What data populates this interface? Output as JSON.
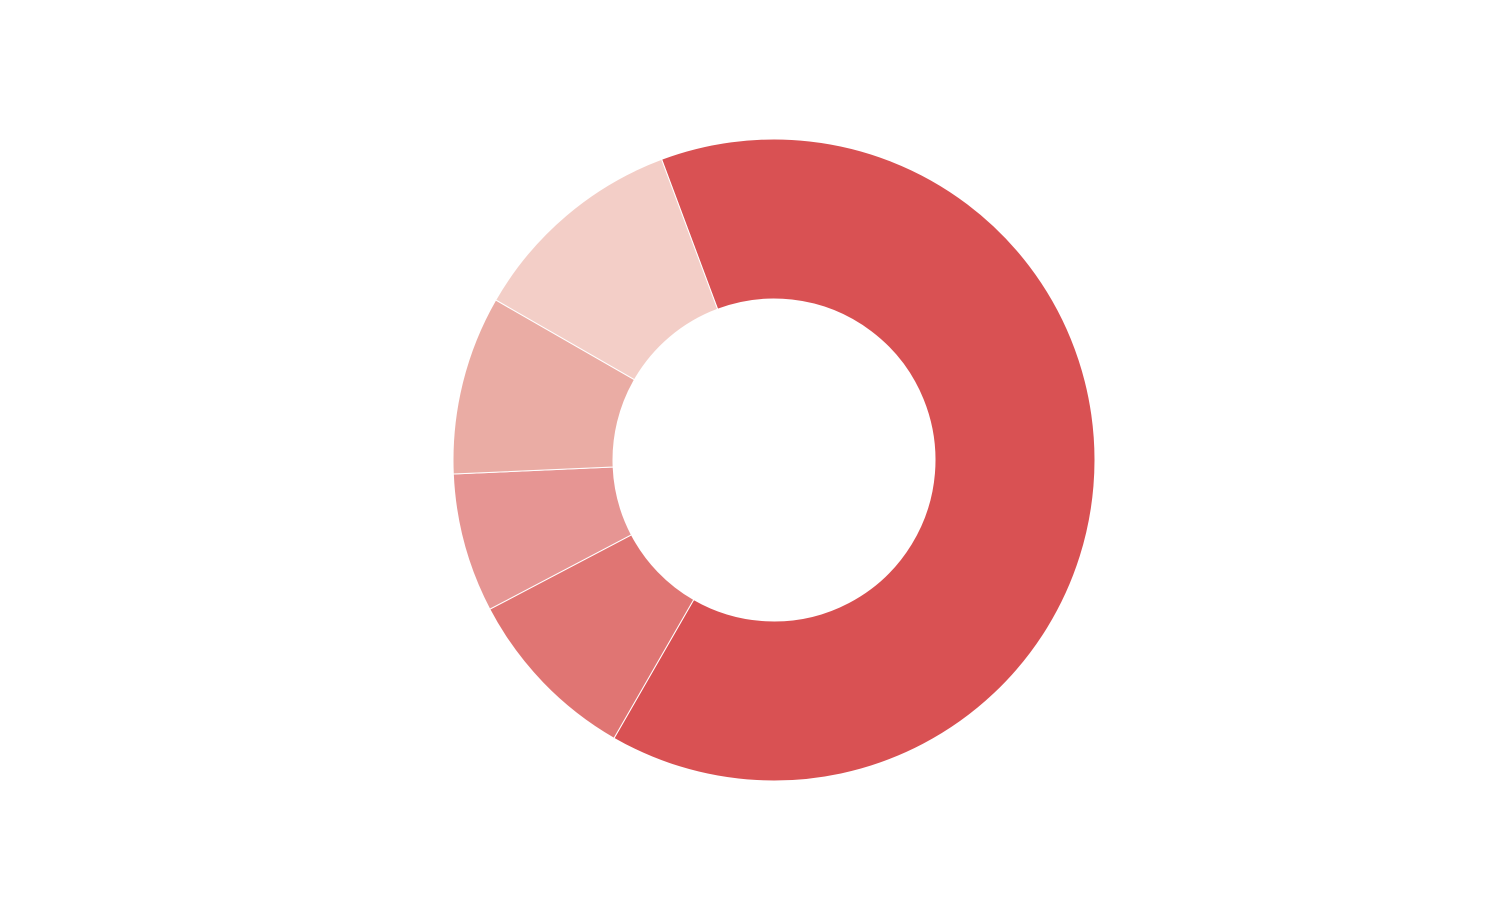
{
  "chart_data": {
    "type": "donut",
    "categories": [
      null,
      null,
      null,
      null,
      null
    ],
    "values": [
      64,
      9,
      7,
      9,
      11
    ],
    "colors": [
      "#d95153",
      "#e07573",
      "#e69593",
      "#eaaca4",
      "#f3cec7"
    ]
  }
}
